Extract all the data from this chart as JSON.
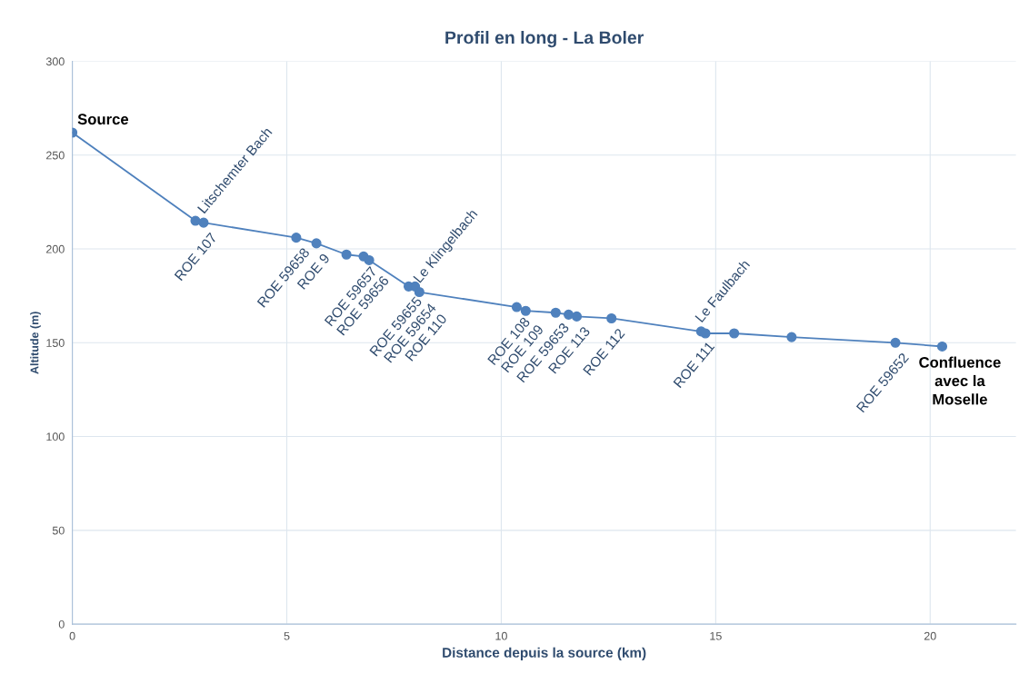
{
  "chart_data": {
    "type": "line",
    "title": "Profil en long - La Boler",
    "xlabel": "Distance depuis la source (km)",
    "ylabel": "Altitude (m)",
    "x": [
      0,
      2.87,
      3.06,
      5.22,
      5.69,
      6.39,
      6.79,
      6.92,
      7.84,
      7.99,
      8.09,
      10.36,
      10.57,
      11.27,
      11.57,
      11.76,
      12.57,
      14.66,
      14.76,
      15.43,
      16.77,
      19.19,
      20.28
    ],
    "series": [
      {
        "color": "#4f81bd",
        "values": [
          262,
          215,
          214,
          206,
          203,
          197,
          196,
          194,
          180,
          180,
          177,
          169,
          167,
          166,
          165,
          164,
          163,
          156,
          155,
          155,
          153,
          150,
          148
        ]
      }
    ],
    "xlim": [
      0,
      22
    ],
    "xticks": [
      0,
      5,
      10,
      15,
      20
    ],
    "ylim": [
      0,
      300
    ],
    "yticks": [
      0,
      50,
      100,
      150,
      200,
      250,
      300
    ],
    "grid": true,
    "marker": "circle",
    "line_style": "solid",
    "annotations": [
      {
        "text": "Source",
        "x": 0,
        "y": 262
      },
      {
        "text": "ROE 107",
        "x": 3.06,
        "y": 214
      },
      {
        "text": "Litschemter Bach",
        "x": 3.06,
        "y": 214
      },
      {
        "text": "ROE 59658",
        "x": 5.22,
        "y": 206
      },
      {
        "text": "ROE 9",
        "x": 5.69,
        "y": 203
      },
      {
        "text": "ROE 59657",
        "x": 6.79,
        "y": 196
      },
      {
        "text": "ROE 59656",
        "x": 6.92,
        "y": 194
      },
      {
        "text": "ROE 59655",
        "x": 7.84,
        "y": 180
      },
      {
        "text": "ROE 59654",
        "x": 7.99,
        "y": 180
      },
      {
        "text": "ROE 110",
        "x": 8.09,
        "y": 177
      },
      {
        "text": "Le Klingelbach",
        "x": 8.09,
        "y": 177
      },
      {
        "text": "ROE 108",
        "x": 10.36,
        "y": 169
      },
      {
        "text": "ROE 109",
        "x": 10.57,
        "y": 167
      },
      {
        "text": "ROE 59653",
        "x": 11.27,
        "y": 166
      },
      {
        "text": "ROE 113",
        "x": 11.76,
        "y": 164
      },
      {
        "text": "ROE 112",
        "x": 12.57,
        "y": 163
      },
      {
        "text": "ROE 111",
        "x": 14.66,
        "y": 156
      },
      {
        "text": "Le Faulbach",
        "x": 14.66,
        "y": 156
      },
      {
        "text": "ROE 59652",
        "x": 19.19,
        "y": 150
      },
      {
        "text": "Confluence\navec la\nMoselle",
        "x": 20.28,
        "y": 148
      }
    ]
  }
}
